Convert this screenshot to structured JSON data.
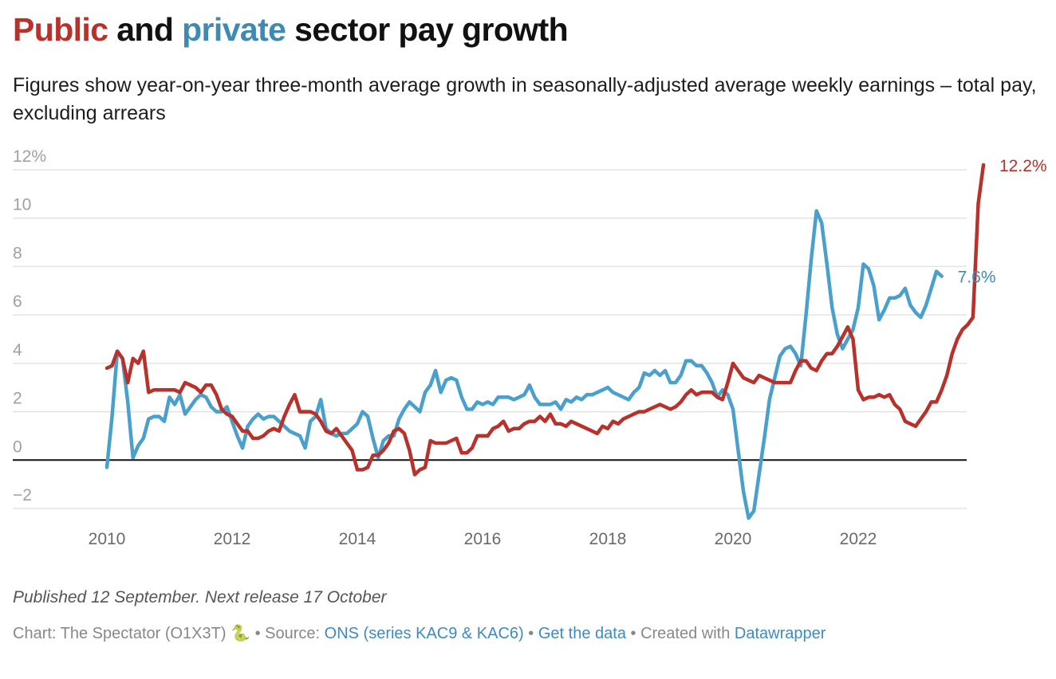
{
  "header": {
    "title_part1": "Public",
    "title_part2": " and ",
    "title_part3": "private",
    "title_part4": " sector pay growth",
    "subtitle": "Figures show year-on-year three-month average growth in seasonally-adjusted average weekly earnings – total pay, excluding arrears"
  },
  "colors": {
    "public": "#b8312b",
    "private": "#4aa0cc",
    "private_label": "#3f8ab0",
    "grid": "#e3e3e3",
    "zero_line": "#111111",
    "link": "#3c8ac6"
  },
  "chart_data": {
    "type": "line",
    "title": "Public and private sector pay growth",
    "xlabel": "",
    "ylabel": "",
    "x_start": "2010-01",
    "x_frequency": "monthly",
    "x_range": [
      2010.0,
      2023.5
    ],
    "ylim": [
      -2,
      12
    ],
    "y_ticks": [
      -2,
      0,
      2,
      4,
      6,
      8,
      10,
      12
    ],
    "y_tick_labels": [
      "−2",
      "0",
      "2",
      "4",
      "6",
      "8",
      "10",
      "12%"
    ],
    "x_ticks": [
      2010,
      2012,
      2014,
      2016,
      2018,
      2020,
      2022
    ],
    "x_tick_labels": [
      "2010",
      "2012",
      "2014",
      "2016",
      "2018",
      "2020",
      "2022"
    ],
    "grid": true,
    "legend": "title-colored",
    "series": [
      {
        "name": "Public",
        "end_label": "12.2%",
        "values": [
          3.8,
          3.9,
          4.5,
          4.2,
          3.2,
          4.2,
          4.0,
          4.5,
          2.8,
          2.9,
          2.9,
          2.9,
          2.9,
          2.9,
          2.8,
          3.2,
          3.1,
          3.0,
          2.8,
          3.1,
          3.1,
          2.7,
          2.1,
          1.9,
          1.8,
          1.5,
          1.2,
          1.2,
          0.9,
          0.9,
          1.0,
          1.2,
          1.3,
          1.2,
          1.8,
          2.3,
          2.7,
          2.0,
          2.0,
          2.0,
          1.9,
          1.6,
          1.2,
          1.1,
          1.3,
          1.0,
          0.7,
          0.4,
          -0.4,
          -0.4,
          -0.3,
          0.2,
          0.2,
          0.4,
          0.7,
          1.2,
          1.3,
          1.1,
          0.4,
          -0.6,
          -0.4,
          -0.3,
          0.8,
          0.7,
          0.7,
          0.7,
          0.8,
          0.9,
          0.3,
          0.3,
          0.5,
          1.0,
          1.0,
          1.0,
          1.3,
          1.4,
          1.6,
          1.2,
          1.3,
          1.3,
          1.5,
          1.6,
          1.6,
          1.8,
          1.6,
          1.9,
          1.5,
          1.5,
          1.4,
          1.6,
          1.5,
          1.4,
          1.3,
          1.2,
          1.1,
          1.4,
          1.3,
          1.6,
          1.5,
          1.7,
          1.8,
          1.9,
          2.0,
          2.0,
          2.1,
          2.2,
          2.3,
          2.2,
          2.1,
          2.2,
          2.4,
          2.7,
          2.9,
          2.7,
          2.8,
          2.8,
          2.8,
          2.6,
          2.5,
          3.2,
          4.0,
          3.7,
          3.4,
          3.3,
          3.2,
          3.5,
          3.4,
          3.3,
          3.2,
          3.2,
          3.2,
          3.2,
          3.7,
          4.1,
          4.1,
          3.8,
          3.7,
          4.1,
          4.4,
          4.4,
          4.7,
          5.1,
          5.5,
          5.0,
          2.9,
          2.5,
          2.6,
          2.6,
          2.7,
          2.6,
          2.7,
          2.3,
          2.1,
          1.6,
          1.5,
          1.4,
          1.7,
          2.0,
          2.4,
          2.4,
          2.9,
          3.5,
          4.4,
          5.0,
          5.4,
          5.6,
          5.9,
          10.6,
          12.2
        ]
      },
      {
        "name": "Private",
        "end_label": "7.6%",
        "values": [
          -0.3,
          1.8,
          4.5,
          4.2,
          2.4,
          0.1,
          0.6,
          0.9,
          1.7,
          1.8,
          1.8,
          1.6,
          2.6,
          2.3,
          2.7,
          1.9,
          2.2,
          2.5,
          2.7,
          2.6,
          2.2,
          2.0,
          2.0,
          2.2,
          1.6,
          1.0,
          0.5,
          1.4,
          1.7,
          1.9,
          1.7,
          1.8,
          1.8,
          1.6,
          1.4,
          1.2,
          1.1,
          1.0,
          0.5,
          1.6,
          1.8,
          2.5,
          1.3,
          1.1,
          1.0,
          1.1,
          1.1,
          1.3,
          1.5,
          2.0,
          1.8,
          0.9,
          0.1,
          0.8,
          1.0,
          1.0,
          1.7,
          2.1,
          2.4,
          2.2,
          2.0,
          2.8,
          3.1,
          3.7,
          2.8,
          3.3,
          3.4,
          3.3,
          2.6,
          2.1,
          2.1,
          2.4,
          2.3,
          2.4,
          2.3,
          2.6,
          2.6,
          2.6,
          2.5,
          2.6,
          2.7,
          3.1,
          2.6,
          2.3,
          2.3,
          2.3,
          2.4,
          2.1,
          2.5,
          2.4,
          2.6,
          2.5,
          2.7,
          2.7,
          2.8,
          2.9,
          3.0,
          2.8,
          2.7,
          2.6,
          2.5,
          2.8,
          3.0,
          3.6,
          3.5,
          3.7,
          3.5,
          3.7,
          3.2,
          3.2,
          3.5,
          4.1,
          4.1,
          3.9,
          3.9,
          3.6,
          3.2,
          2.6,
          2.9,
          2.7,
          2.1,
          0.4,
          -1.3,
          -2.4,
          -2.1,
          -0.6,
          0.9,
          2.5,
          3.4,
          4.3,
          4.6,
          4.7,
          4.4,
          3.9,
          6.0,
          8.3,
          10.3,
          9.8,
          8.1,
          6.3,
          5.2,
          4.6,
          5.0,
          5.4,
          6.3,
          8.1,
          7.9,
          7.2,
          5.8,
          6.2,
          6.7,
          6.7,
          6.8,
          7.1,
          6.4,
          6.1,
          5.9,
          6.4,
          7.1,
          7.8,
          7.6
        ]
      }
    ]
  },
  "notes": "Published 12 September. Next release 17 October",
  "footer": {
    "chart_credit": "Chart: The Spectator (O1X3T)",
    "snake_emoji": "🐍",
    "separator": "•",
    "source_label": "Source:",
    "source_link": "ONS (series KAC9 & KAC6)",
    "get_data_link": "Get the data",
    "created_with_label": "Created with",
    "datawrapper_link": "Datawrapper"
  }
}
